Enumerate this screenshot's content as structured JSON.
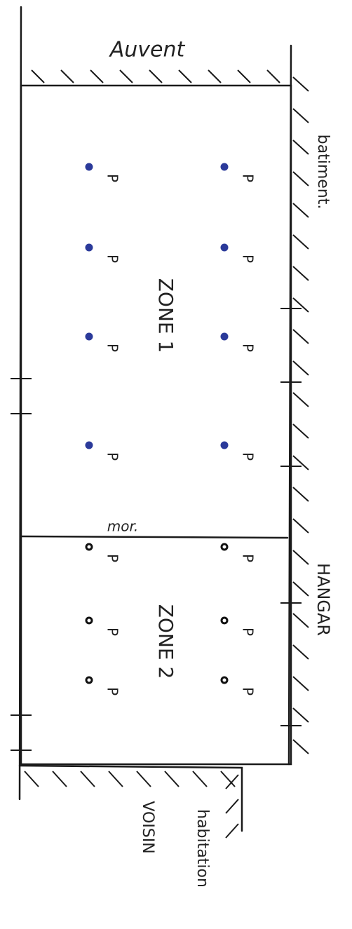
{
  "labels": {
    "awning": "Auvent",
    "building": "batiment.",
    "wall": "mor.",
    "hangar": "HANGAR",
    "neighbor_house": "habitation",
    "neighbor": "VOISIN"
  },
  "zones": [
    {
      "label": "ZONE 1",
      "markers": [
        "P",
        "P",
        "P",
        "P",
        "P",
        "P",
        "P",
        "P"
      ]
    },
    {
      "label": "ZONE 2",
      "markers": [
        "P",
        "P",
        "P",
        "P",
        "P",
        "P"
      ]
    }
  ]
}
